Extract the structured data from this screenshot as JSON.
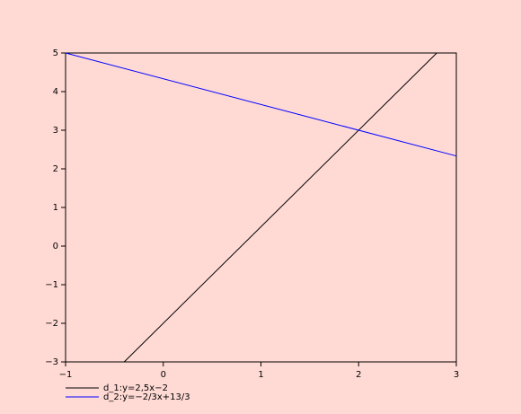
{
  "chart_data": {
    "type": "line",
    "series": [
      {
        "name": "d_1:y=2,5x−2",
        "color": "#000000",
        "x": [
          -0.4,
          2.8
        ],
        "values": [
          -3,
          5
        ]
      },
      {
        "name": "d_2:y=−2/3x+13/3",
        "color": "#0000ff",
        "x": [
          -1,
          3
        ],
        "values": [
          5,
          2.333
        ]
      }
    ],
    "xlim": [
      -1,
      3
    ],
    "xticks": [
      {
        "value": -1,
        "label": "−1"
      },
      0,
      1,
      2,
      3
    ],
    "ylim": [
      -3,
      5
    ],
    "yticks": [
      {
        "value": -3,
        "label": "−3"
      },
      {
        "value": -2,
        "label": "−2"
      },
      {
        "value": -1,
        "label": "−1"
      },
      0,
      1,
      2,
      3,
      4,
      5
    ],
    "grid": false,
    "legend": "bottom-left"
  }
}
